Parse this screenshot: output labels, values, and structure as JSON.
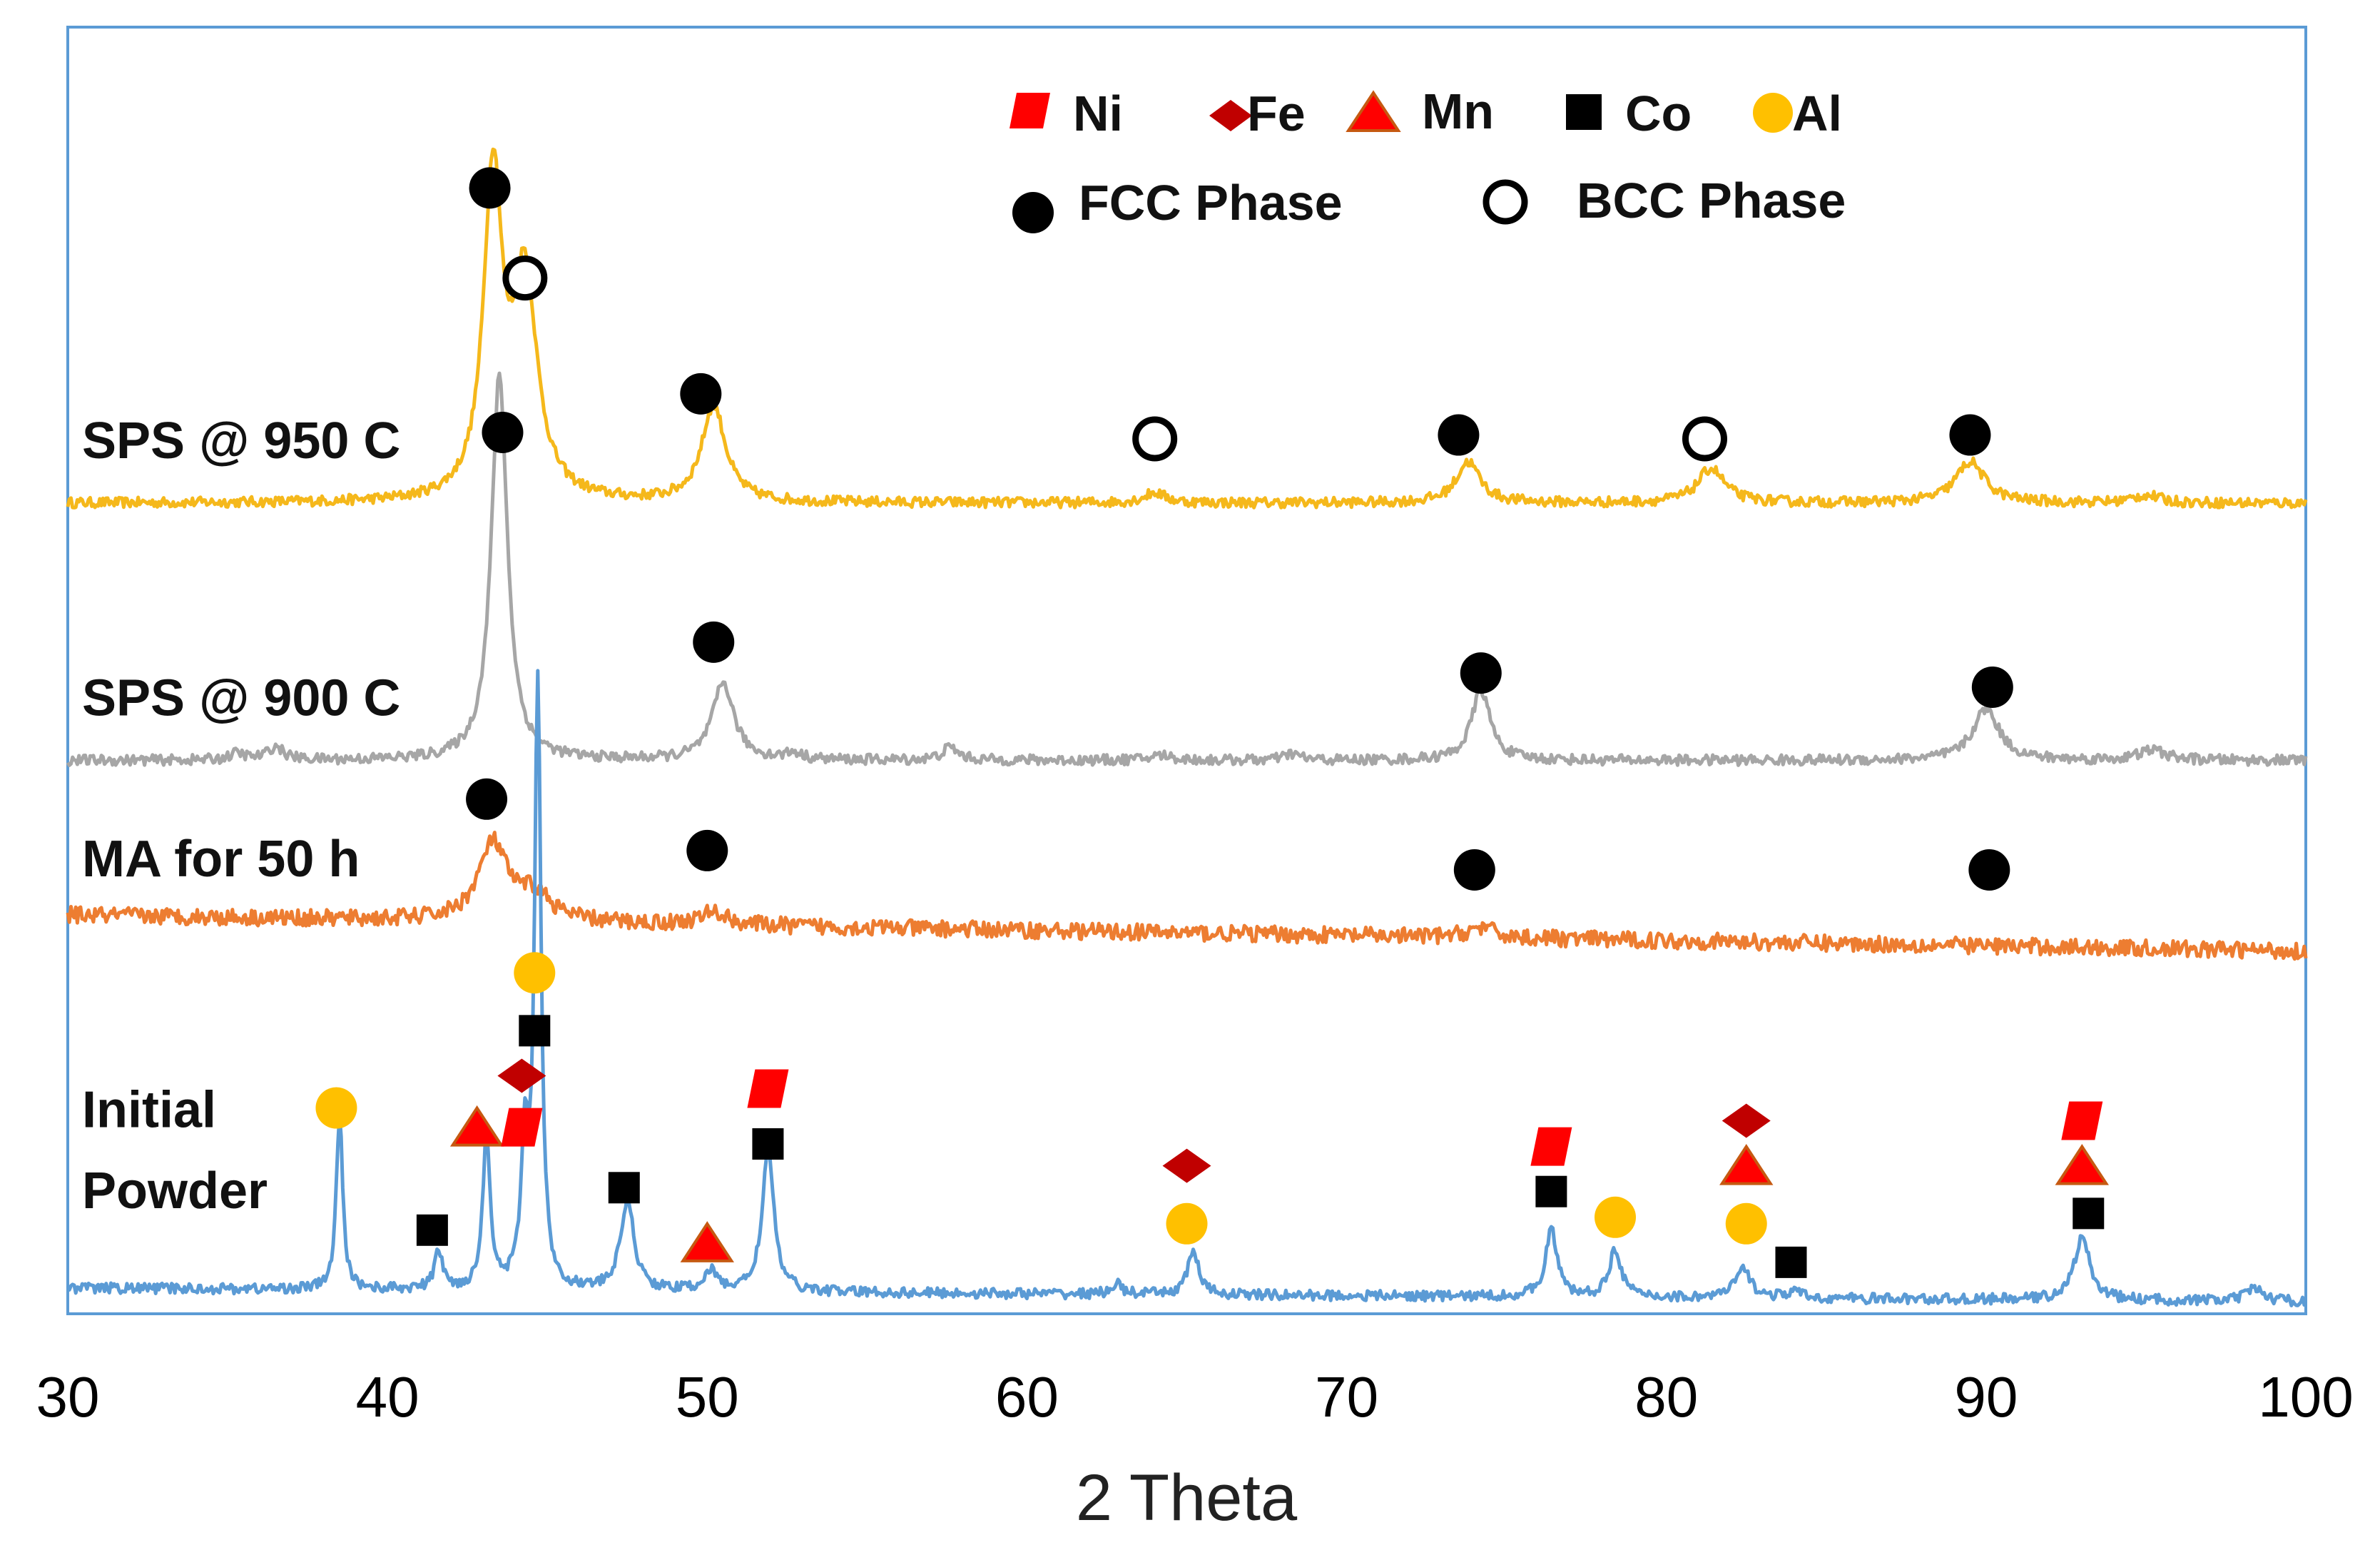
{
  "chart_data": {
    "type": "line",
    "title": "",
    "xlabel": "2 Theta",
    "ylabel": "",
    "xlim": [
      30,
      100
    ],
    "ylim": [
      0,
      10
    ],
    "xticks": [
      30,
      40,
      50,
      60,
      70,
      80,
      90,
      100
    ],
    "colors": {
      "frame": "#5b9bd5",
      "sps950": "#f5b81b",
      "sps900": "#a6a6a6",
      "ma50": "#ed7d31",
      "initial": "#5b9bd5",
      "ni": "#ff0000",
      "fe": "#c00000",
      "mn_fill": "#ff0000",
      "mn_stroke": "#c65911",
      "co": "#000000",
      "al": "#ffc000",
      "fcc": "#000000",
      "bcc": "#000000"
    },
    "legend": {
      "placement": "top-right",
      "entries": [
        {
          "key": "ni",
          "label": "Ni"
        },
        {
          "key": "fe",
          "label": "Fe"
        },
        {
          "key": "mn",
          "label": "Mn"
        },
        {
          "key": "co",
          "label": "Co"
        },
        {
          "key": "al",
          "label": "Al"
        },
        {
          "key": "fcc",
          "label": "FCC Phase"
        },
        {
          "key": "bcc",
          "label": "BCC Phase"
        }
      ]
    },
    "series": [
      {
        "name": "SPS @ 950 C",
        "key": "sps950",
        "baseline": 6.3,
        "noise": 0.05,
        "peaks": [
          [
            43.3,
            2.5,
            0.35
          ],
          [
            44.3,
            1.7,
            0.45
          ],
          [
            50.2,
            0.75,
            0.45
          ],
          [
            64.0,
            0.08,
            0.4
          ],
          [
            73.8,
            0.32,
            0.45
          ],
          [
            81.4,
            0.27,
            0.5
          ],
          [
            89.5,
            0.32,
            0.55
          ],
          [
            95.0,
            0.06,
            0.5
          ]
        ],
        "markers": [
          {
            "type": "fcc",
            "x": 43.2,
            "y": 8.75
          },
          {
            "type": "bcc",
            "x": 44.3,
            "y": 8.05
          },
          {
            "type": "fcc",
            "x": 49.8,
            "y": 7.15
          },
          {
            "type": "bcc",
            "x": 64.0,
            "y": 6.8
          },
          {
            "type": "fcc",
            "x": 73.5,
            "y": 6.83
          },
          {
            "type": "bcc",
            "x": 81.2,
            "y": 6.8
          },
          {
            "type": "fcc",
            "x": 89.5,
            "y": 6.83
          }
        ]
      },
      {
        "name": "SPS @ 900 C",
        "key": "sps900",
        "baseline": 4.3,
        "noise": 0.05,
        "peaks": [
          [
            43.5,
            3.0,
            0.3
          ],
          [
            50.5,
            0.6,
            0.4
          ],
          [
            74.2,
            0.55,
            0.35
          ],
          [
            90.0,
            0.4,
            0.5
          ],
          [
            35.3,
            0.05,
            0.3
          ],
          [
            36.5,
            0.1,
            0.3
          ],
          [
            52.7,
            0.05,
            0.3
          ],
          [
            57.6,
            0.1,
            0.3
          ],
          [
            64.2,
            0.04,
            0.4
          ],
          [
            68.3,
            0.05,
            0.3
          ],
          [
            95.2,
            0.08,
            0.5
          ]
        ],
        "markers": [
          {
            "type": "fcc",
            "x": 43.6,
            "y": 6.85
          },
          {
            "type": "fcc",
            "x": 50.2,
            "y": 5.22
          },
          {
            "type": "fcc",
            "x": 74.2,
            "y": 4.98
          },
          {
            "type": "fcc",
            "x": 90.2,
            "y": 4.87
          }
        ]
      },
      {
        "name": "MA for 50 h",
        "key": "ma50",
        "baseline": 3.1,
        "noise": 0.08,
        "slope": -0.004,
        "peaks": [
          [
            43.3,
            0.6,
            0.55
          ],
          [
            44.6,
            0.2,
            0.6
          ],
          [
            50.2,
            0.1,
            0.5
          ],
          [
            74.2,
            0.08,
            0.5
          ]
        ],
        "markers": [
          {
            "type": "fcc",
            "x": 43.1,
            "y": 4.0
          },
          {
            "type": "fcc",
            "x": 50.0,
            "y": 3.6
          },
          {
            "type": "fcc",
            "x": 74.0,
            "y": 3.45
          },
          {
            "type": "fcc",
            "x": 90.1,
            "y": 3.45
          }
        ]
      },
      {
        "name": "Initial Powder",
        "key": "initial",
        "baseline": 0.2,
        "noise": 0.05,
        "slope": -0.0015,
        "peaks": [
          [
            38.5,
            1.35,
            0.12
          ],
          [
            41.6,
            0.3,
            0.15
          ],
          [
            43.1,
            1.2,
            0.14
          ],
          [
            44.3,
            1.1,
            0.14
          ],
          [
            44.7,
            4.7,
            0.12
          ],
          [
            47.5,
            0.7,
            0.25
          ],
          [
            50.1,
            0.15,
            0.25
          ],
          [
            51.9,
            1.1,
            0.22
          ],
          [
            62.8,
            0.08,
            0.2
          ],
          [
            65.2,
            0.35,
            0.2
          ],
          [
            76.4,
            0.52,
            0.22
          ],
          [
            78.4,
            0.38,
            0.22
          ],
          [
            82.4,
            0.22,
            0.3
          ],
          [
            84.0,
            0.06,
            0.2
          ],
          [
            93.0,
            0.48,
            0.3
          ],
          [
            98.4,
            0.1,
            0.3
          ]
        ],
        "markers": [
          {
            "type": "al",
            "x": 38.4,
            "y": 1.6
          },
          {
            "type": "mn",
            "x": 42.8,
            "y": 1.45
          },
          {
            "type": "ni",
            "x": 44.2,
            "y": 1.45
          },
          {
            "type": "co",
            "x": 41.4,
            "y": 0.65
          },
          {
            "type": "fe",
            "x": 44.2,
            "y": 1.85
          },
          {
            "type": "co",
            "x": 44.6,
            "y": 2.2
          },
          {
            "type": "al",
            "x": 44.6,
            "y": 2.65
          },
          {
            "type": "co",
            "x": 47.4,
            "y": 0.98
          },
          {
            "type": "mn",
            "x": 50.0,
            "y": 0.55
          },
          {
            "type": "ni",
            "x": 51.9,
            "y": 1.75
          },
          {
            "type": "co",
            "x": 51.9,
            "y": 1.32
          },
          {
            "type": "fe",
            "x": 65.0,
            "y": 1.15
          },
          {
            "type": "al",
            "x": 65.0,
            "y": 0.7
          },
          {
            "type": "ni",
            "x": 76.4,
            "y": 1.3
          },
          {
            "type": "co",
            "x": 76.4,
            "y": 0.95
          },
          {
            "type": "al",
            "x": 78.4,
            "y": 0.75
          },
          {
            "type": "fe",
            "x": 82.5,
            "y": 1.5
          },
          {
            "type": "mn",
            "x": 82.5,
            "y": 1.15
          },
          {
            "type": "al",
            "x": 82.5,
            "y": 0.7
          },
          {
            "type": "co",
            "x": 83.9,
            "y": 0.4
          },
          {
            "type": "ni",
            "x": 93.0,
            "y": 1.5
          },
          {
            "type": "mn",
            "x": 93.0,
            "y": 1.15
          },
          {
            "type": "co",
            "x": 93.2,
            "y": 0.78
          }
        ]
      }
    ],
    "series_labels": [
      {
        "key": "sps950",
        "text": "SPS @ 950 C",
        "anchor_y": 6.65
      },
      {
        "key": "sps900",
        "text": "SPS @ 900 C",
        "anchor_y": 4.65
      },
      {
        "key": "ma50",
        "text": "MA for 50 h",
        "anchor_y": 3.4
      },
      {
        "key": "initial",
        "text": "Initial",
        "anchor_y": 1.45
      },
      {
        "key": "initial",
        "text": "Powder",
        "anchor_y": 0.82
      }
    ]
  }
}
